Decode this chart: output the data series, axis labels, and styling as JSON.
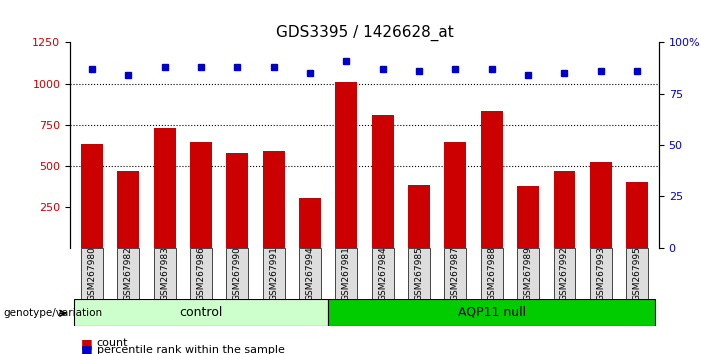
{
  "title": "GDS3395 / 1426628_at",
  "categories": [
    "GSM267980",
    "GSM267982",
    "GSM267983",
    "GSM267986",
    "GSM267990",
    "GSM267991",
    "GSM267994",
    "GSM267981",
    "GSM267984",
    "GSM267985",
    "GSM267987",
    "GSM267988",
    "GSM267989",
    "GSM267992",
    "GSM267993",
    "GSM267995"
  ],
  "counts": [
    630,
    465,
    730,
    645,
    575,
    590,
    305,
    1010,
    810,
    385,
    645,
    830,
    375,
    465,
    520,
    400
  ],
  "percentile_ranks": [
    87,
    84,
    88,
    88,
    88,
    88,
    85,
    91,
    87,
    86,
    87,
    87,
    84,
    85,
    86,
    86
  ],
  "control_count": 7,
  "control_label": "control",
  "aqp11_label": "AQP11 null",
  "ylim_left": [
    0,
    1250
  ],
  "ylim_right": [
    0,
    100
  ],
  "yticks_left": [
    250,
    500,
    750,
    1000,
    1250
  ],
  "yticks_right": [
    0,
    25,
    50,
    75,
    100
  ],
  "bar_color": "#cc0000",
  "dot_color": "#0000cc",
  "control_bg": "#ccffcc",
  "aqp11_bg": "#00cc00",
  "xticklabel_bg": "#dddddd",
  "legend_count_color": "#cc0000",
  "legend_pct_color": "#0000cc",
  "genotype_label": "genotype/variation",
  "legend_count": "count",
  "legend_pct": "percentile rank within the sample"
}
